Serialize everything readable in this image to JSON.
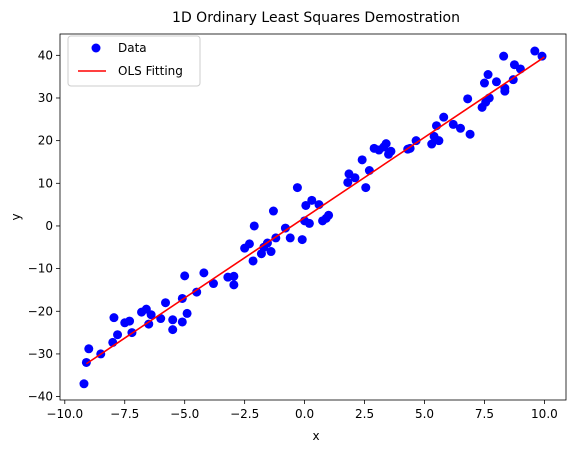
{
  "chart_data": {
    "type": "scatter",
    "title": "1D Ordinary Least Squares Demostration",
    "xlabel": "x",
    "ylabel": "y",
    "xlim": [
      -10.2,
      10.9
    ],
    "ylim": [
      -40.8,
      45
    ],
    "xticks": [
      -10.0,
      -7.5,
      -5.0,
      -2.5,
      0.0,
      2.5,
      5.0,
      7.5,
      10.0
    ],
    "xtick_labels": [
      "−10.0",
      "−7.5",
      "−5.0",
      "−2.5",
      "0.0",
      "2.5",
      "5.0",
      "7.5",
      "10.0"
    ],
    "yticks": [
      -40,
      -30,
      -20,
      -10,
      0,
      10,
      20,
      30,
      40
    ],
    "ytick_labels": [
      "−40",
      "−30",
      "−20",
      "−10",
      "0",
      "10",
      "20",
      "30",
      "40"
    ],
    "grid": false,
    "legend": {
      "position": "top-left",
      "entries": [
        "Data",
        "OLS Fitting"
      ]
    },
    "colors": {
      "data": "#0000ff",
      "fit": "#ff0000"
    },
    "series": [
      {
        "name": "Data",
        "kind": "scatter",
        "points": [
          [
            -9.2,
            -37.0
          ],
          [
            -9.1,
            -32.0
          ],
          [
            -9.0,
            -28.8
          ],
          [
            -8.5,
            -30.0
          ],
          [
            -8.0,
            -27.3
          ],
          [
            -7.95,
            -21.5
          ],
          [
            -7.8,
            -25.5
          ],
          [
            -7.5,
            -22.7
          ],
          [
            -7.3,
            -22.3
          ],
          [
            -7.2,
            -25.0
          ],
          [
            -6.8,
            -20.2
          ],
          [
            -6.6,
            -19.5
          ],
          [
            -6.5,
            -23.0
          ],
          [
            -6.4,
            -20.8
          ],
          [
            -6.0,
            -21.7
          ],
          [
            -5.8,
            -18.0
          ],
          [
            -5.5,
            -22.0
          ],
          [
            -5.5,
            -24.3
          ],
          [
            -5.1,
            -22.5
          ],
          [
            -5.1,
            -17.0
          ],
          [
            -5.0,
            -11.7
          ],
          [
            -4.9,
            -20.5
          ],
          [
            -4.5,
            -15.5
          ],
          [
            -4.2,
            -11.0
          ],
          [
            -3.8,
            -13.5
          ],
          [
            -3.2,
            -12.0
          ],
          [
            -2.95,
            -11.8
          ],
          [
            -2.95,
            -13.8
          ],
          [
            -2.5,
            -5.2
          ],
          [
            -2.3,
            -4.2
          ],
          [
            -2.15,
            -8.2
          ],
          [
            -2.1,
            0.0
          ],
          [
            -1.8,
            -6.5
          ],
          [
            -1.7,
            -5.0
          ],
          [
            -1.55,
            -4.0
          ],
          [
            -1.4,
            -6.0
          ],
          [
            -1.3,
            3.5
          ],
          [
            -1.2,
            -2.8
          ],
          [
            -0.8,
            -0.5
          ],
          [
            -0.6,
            -2.8
          ],
          [
            -0.3,
            9.0
          ],
          [
            -0.1,
            -3.2
          ],
          [
            0.0,
            1.2
          ],
          [
            0.05,
            4.8
          ],
          [
            0.2,
            0.6
          ],
          [
            0.3,
            6.0
          ],
          [
            0.6,
            5.0
          ],
          [
            0.75,
            1.2
          ],
          [
            0.9,
            1.8
          ],
          [
            1.0,
            2.5
          ],
          [
            1.8,
            10.2
          ],
          [
            1.85,
            12.2
          ],
          [
            2.1,
            11.3
          ],
          [
            2.4,
            15.5
          ],
          [
            2.55,
            9.0
          ],
          [
            2.7,
            13.0
          ],
          [
            2.9,
            18.2
          ],
          [
            3.1,
            17.8
          ],
          [
            3.3,
            18.5
          ],
          [
            3.4,
            19.3
          ],
          [
            3.5,
            16.8
          ],
          [
            3.6,
            17.5
          ],
          [
            4.3,
            18.0
          ],
          [
            4.4,
            18.2
          ],
          [
            4.65,
            20.0
          ],
          [
            5.3,
            19.2
          ],
          [
            5.4,
            21.0
          ],
          [
            5.5,
            23.5
          ],
          [
            5.6,
            20.0
          ],
          [
            5.8,
            25.5
          ],
          [
            6.2,
            23.8
          ],
          [
            6.5,
            22.9
          ],
          [
            6.8,
            29.8
          ],
          [
            6.9,
            21.5
          ],
          [
            7.4,
            27.8
          ],
          [
            7.5,
            33.5
          ],
          [
            7.55,
            29.0
          ],
          [
            7.65,
            35.5
          ],
          [
            7.7,
            30.0
          ],
          [
            8.0,
            33.8
          ],
          [
            8.3,
            39.8
          ],
          [
            8.35,
            31.6
          ],
          [
            8.35,
            32.3
          ],
          [
            8.7,
            34.3
          ],
          [
            8.75,
            37.8
          ],
          [
            9.0,
            36.8
          ],
          [
            9.6,
            41.0
          ],
          [
            9.9,
            39.8
          ]
        ]
      },
      {
        "name": "OLS Fitting",
        "kind": "line",
        "points": [
          [
            -9.1,
            -32.3
          ],
          [
            10.0,
            39.6
          ]
        ]
      }
    ]
  }
}
